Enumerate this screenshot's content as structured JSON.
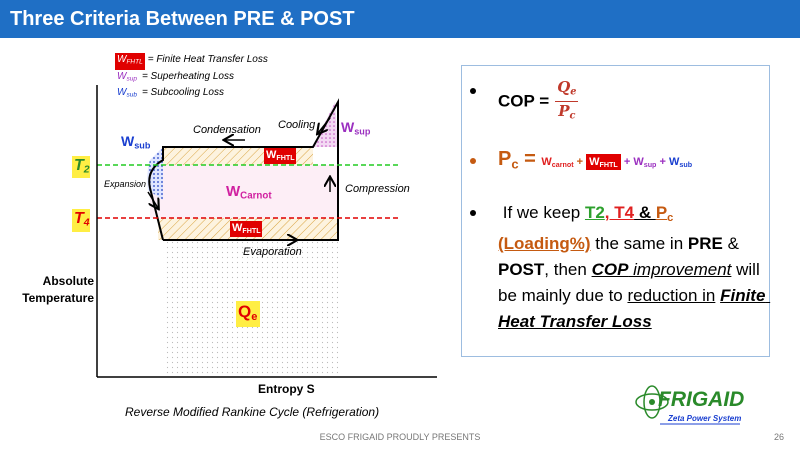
{
  "header": {
    "title": "Three Criteria Between PRE & POST"
  },
  "legend": [
    {
      "symbol": "W",
      "sub": "FHTL",
      "text": "= Finite Heat Transfer Loss"
    },
    {
      "symbol": "W",
      "sub": "sup",
      "text": "= Superheating Loss"
    },
    {
      "symbol": "W",
      "sub": "sub",
      "text": "= Subcooling Loss"
    }
  ],
  "diagram": {
    "y_axis_label": "Absolute Temperature",
    "x_axis_label": "Entropy S",
    "caption": "Reverse Modified Rankine Cycle (Refrigeration)",
    "condensation": "Condensation",
    "cooling": "Cooling",
    "expansion": "Expansion",
    "compression": "Compression",
    "evaporation": "Evaporation",
    "t2": {
      "base": "T",
      "sub": "2"
    },
    "t4": {
      "base": "T",
      "sub": "4"
    },
    "w_sub": {
      "base": "W",
      "sub": "sub"
    },
    "w_sup": {
      "base": "W",
      "sub": "sup"
    },
    "w_carnot": {
      "base": "W",
      "sub": "Carnot"
    },
    "w_fhtl_top": {
      "base": "W",
      "sub": "FHTL"
    },
    "w_fhtl_bottom": {
      "base": "W",
      "sub": "FHTL"
    },
    "q_e": {
      "base": "Q",
      "sub": "e"
    }
  },
  "bullets": [
    {
      "runs": [
        {
          "text": "COP =",
          "bold": true
        }
      ],
      "fraction": {
        "numerator": {
          "text": "Q",
          "sub": "e"
        },
        "denominator": {
          "text": "P",
          "sub": "c"
        },
        "color": "#c0392b"
      }
    },
    {
      "runs": [
        {
          "text": "P",
          "sub": "c",
          "color": "#c55a11",
          "bold": true
        },
        {
          "text": " = ",
          "color": "#c55a11",
          "bold": true
        },
        {
          "text": "W",
          "sub": "carnot",
          "color": "#e02020",
          "bold": true
        },
        {
          "text": " + ",
          "color": "#c55a11",
          "bold": true
        },
        {
          "text": "W",
          "sub": "FHTL",
          "color": "#ffffff",
          "box": "#e00000",
          "bold": true
        },
        {
          "text": " + ",
          "color": "#9b30c0",
          "bold": true
        },
        {
          "text": "W",
          "sub": "sup",
          "color": "#9b30c0",
          "bold": true
        },
        {
          "text": " + ",
          "color": "#9b30c0",
          "bold": true
        },
        {
          "text": "W",
          "sub": "sub",
          "color": "#1a3fd0",
          "bold": true
        }
      ]
    },
    {
      "runs": [
        {
          "text": " If we keep "
        },
        {
          "text": "T2",
          "color": "#2ca02c",
          "bold": true,
          "underline": true
        },
        {
          "text": ",",
          "color": "#e02020",
          "bold": true,
          "underline": true
        },
        {
          "text": " T4",
          "color": "#e02020",
          "bold": true,
          "underline": true
        },
        {
          "text": " & ",
          "bold": true,
          "underline": true
        },
        {
          "text": "P",
          "sub": "c",
          "color": "#c55a11",
          "bold": true,
          "underline": true
        },
        {
          "text": " "
        },
        {
          "text": "(Loading%)",
          "color": "#c55a11",
          "bold": true,
          "underline": true
        },
        {
          "text": " the same in "
        },
        {
          "text": "PRE",
          "bold": true
        },
        {
          "text": " & "
        },
        {
          "text": "POST",
          "bold": true
        },
        {
          "text": ", then "
        },
        {
          "text": "COP",
          "bold": true,
          "italic": true,
          "underline": true
        },
        {
          "text": " improvement",
          "italic": true,
          "underline": true
        },
        {
          "text": " will be mainly due to "
        },
        {
          "text": "reduction in",
          "underline": true
        },
        {
          "text": " "
        },
        {
          "text": "Finite Heat Transfer Loss",
          "bold": true,
          "italic": true,
          "underline": true
        }
      ]
    }
  ],
  "footer": {
    "presenter": "ESCO FRIGAID PROUDLY PRESENTS",
    "page": "26"
  },
  "logo": {
    "name": "FRIGAID",
    "tagline": "Zeta Power System"
  }
}
